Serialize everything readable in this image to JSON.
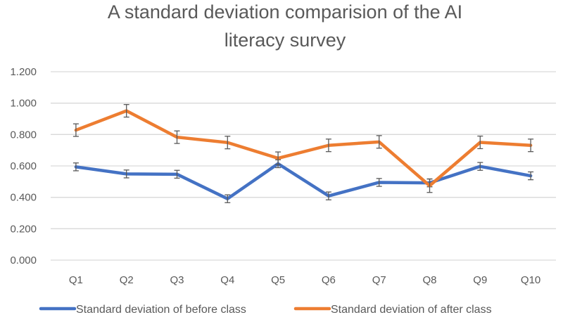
{
  "chart_data": {
    "type": "line",
    "title_lines": [
      "A standard deviation comparision of the AI",
      "literacy survey"
    ],
    "xlabel": "",
    "ylabel": "",
    "categories": [
      "Q1",
      "Q2",
      "Q3",
      "Q4",
      "Q5",
      "Q6",
      "Q7",
      "Q8",
      "Q9",
      "Q10"
    ],
    "y_ticks": [
      "0.000",
      "0.200",
      "0.400",
      "0.600",
      "0.800",
      "1.000",
      "1.200"
    ],
    "ylim": [
      0,
      1.2
    ],
    "grid": true,
    "legend_position": "bottom",
    "series": [
      {
        "name": "Standard deviation of before class",
        "color": "#4472C4",
        "values": [
          0.594,
          0.549,
          0.547,
          0.391,
          0.614,
          0.409,
          0.495,
          0.492,
          0.597,
          0.537
        ],
        "error": [
          0.025,
          0.025,
          0.025,
          0.025,
          0.025,
          0.025,
          0.025,
          0.025,
          0.025,
          0.025
        ]
      },
      {
        "name": "Standard deviation of after class",
        "color": "#ED7D31",
        "values": [
          0.828,
          0.951,
          0.783,
          0.749,
          0.649,
          0.731,
          0.753,
          0.474,
          0.75,
          0.731
        ],
        "error": [
          0.04,
          0.04,
          0.04,
          0.04,
          0.04,
          0.04,
          0.04,
          0.043,
          0.04,
          0.04
        ]
      }
    ]
  }
}
